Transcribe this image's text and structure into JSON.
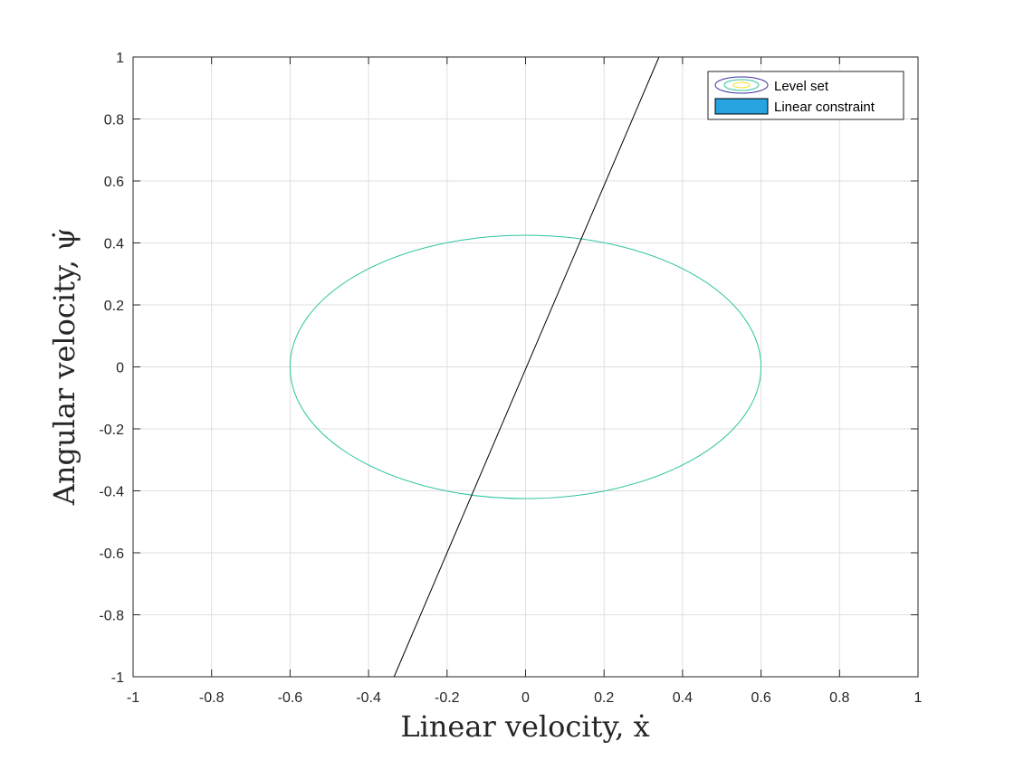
{
  "chart_data": {
    "type": "line",
    "title": "",
    "xlabel": "Linear velocity, ẋ",
    "ylabel": "Angular velocity, ψ̇",
    "xlim": [
      -1,
      1
    ],
    "ylim": [
      -1,
      1
    ],
    "xticks": [
      "-1",
      "-0.8",
      "-0.6",
      "-0.4",
      "-0.2",
      "0",
      "0.2",
      "0.4",
      "0.6",
      "0.8",
      "1"
    ],
    "yticks": [
      "-1",
      "-0.8",
      "-0.6",
      "-0.4",
      "-0.2",
      "0",
      "0.2",
      "0.4",
      "0.6",
      "0.8",
      "1"
    ],
    "grid": true,
    "legend_position": "top-right",
    "series": [
      {
        "name": "Level set",
        "kind": "ellipse-contour",
        "center": [
          0,
          0
        ],
        "x_semi_axis": 0.6,
        "y_semi_axis": 0.425,
        "color": "#2ec4a0"
      },
      {
        "name": "Linear constraint",
        "kind": "line",
        "x": [
          -0.335,
          0.34
        ],
        "y": [
          -1,
          1
        ],
        "color": "#000000",
        "legend_color": "#27a3e0"
      }
    ]
  }
}
